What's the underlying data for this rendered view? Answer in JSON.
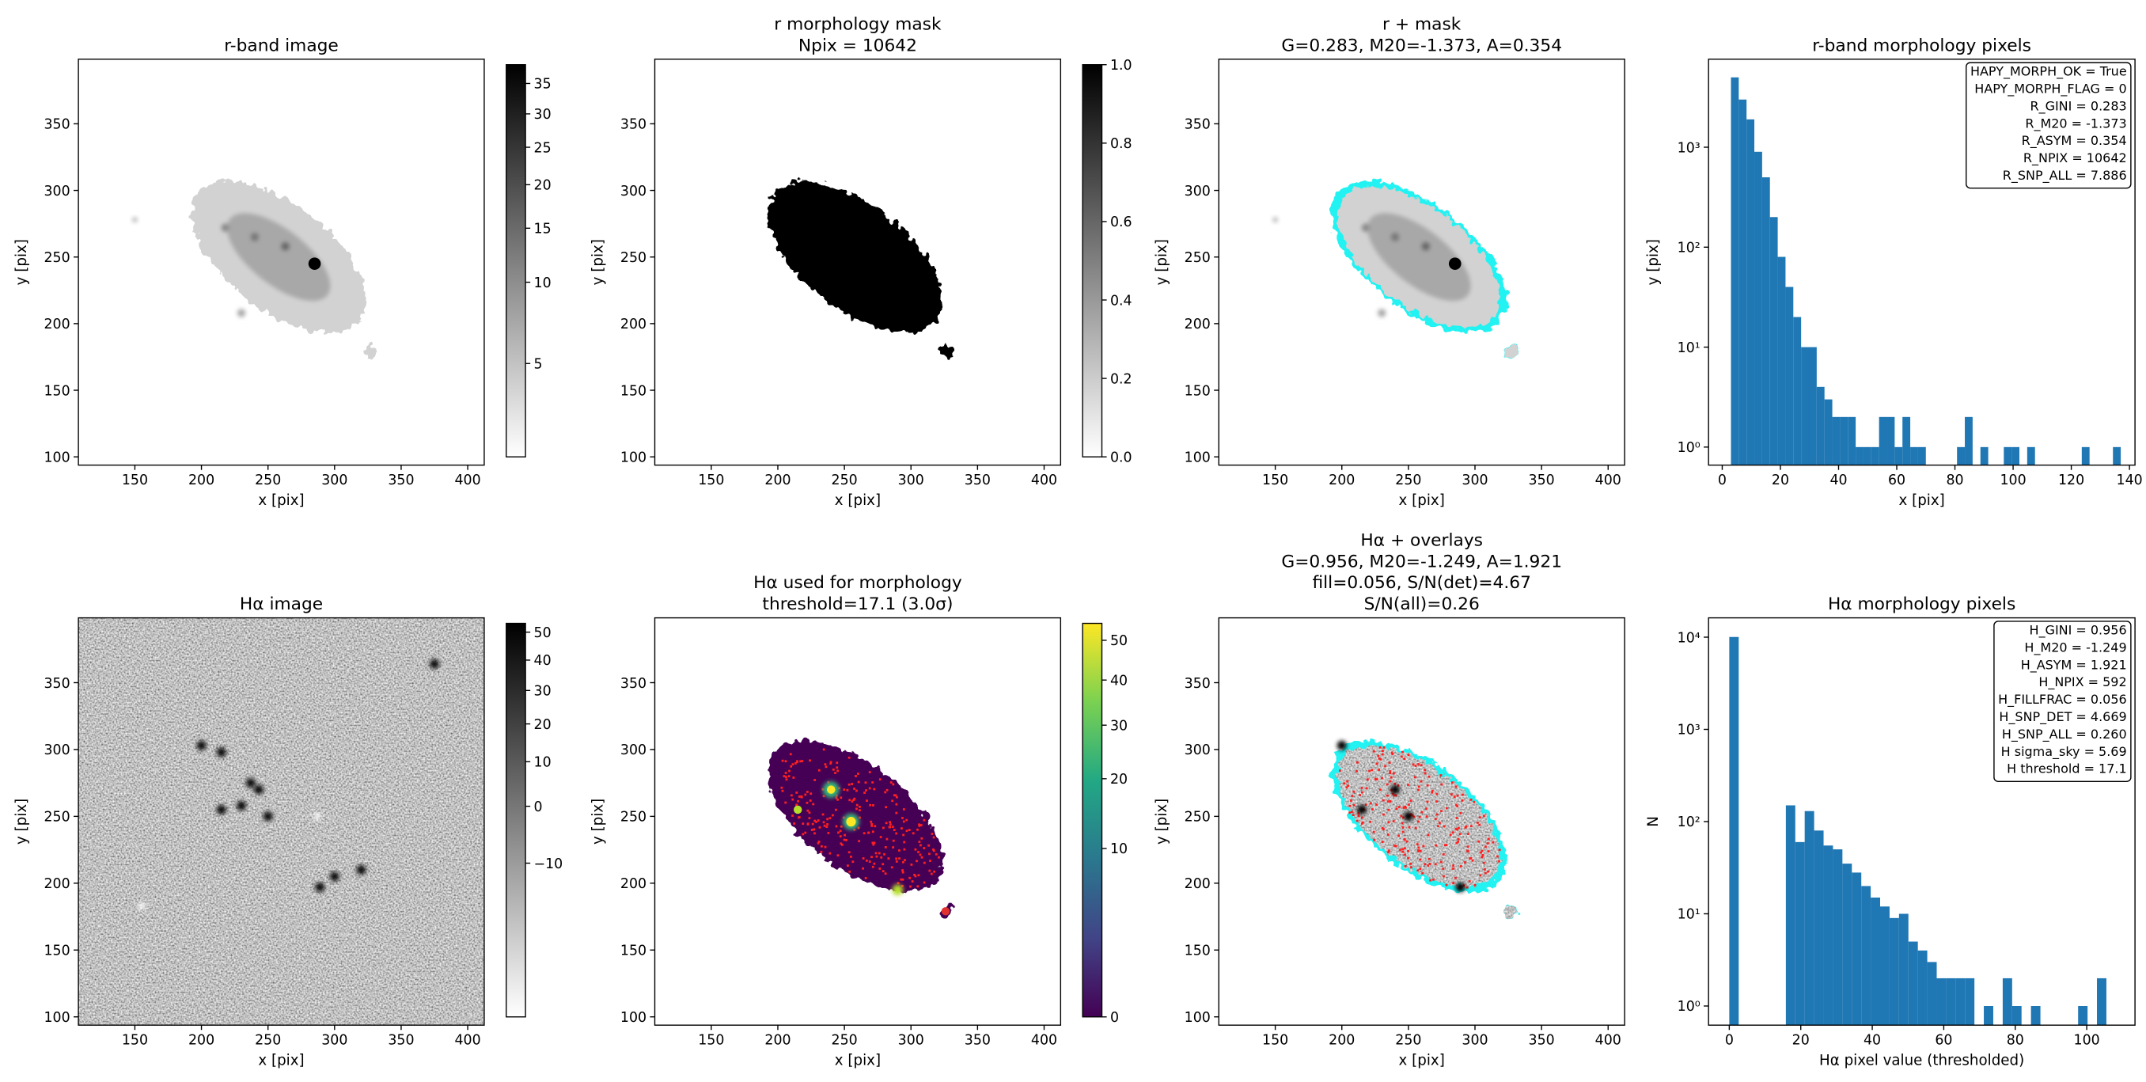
{
  "chart_data": [
    {
      "type": "image",
      "title": [
        "r-band image"
      ],
      "xlabel": "x [pix]",
      "ylabel": "y [pix]",
      "xlim": [
        107.6,
        412.4
      ],
      "ylim": [
        93.8,
        398.5
      ],
      "xticks": [
        150,
        200,
        250,
        300,
        350,
        400
      ],
      "yticks": [
        100,
        150,
        200,
        250,
        300,
        350
      ],
      "colorbar": {
        "cmap": "gray_r",
        "scale": "sqrt",
        "clim": [
          3.0,
          38.3
        ],
        "ticks": [
          5,
          10,
          15,
          20,
          25,
          30,
          35
        ]
      }
    },
    {
      "type": "image",
      "title": [
        "r morphology mask",
        "Npix = 10642"
      ],
      "xlabel": "x [pix]",
      "ylabel": "y [pix]",
      "xlim": [
        107.6,
        412.4
      ],
      "ylim": [
        93.8,
        398.5
      ],
      "xticks": [
        150,
        200,
        250,
        300,
        350,
        400
      ],
      "yticks": [
        100,
        150,
        200,
        250,
        300,
        350
      ],
      "colorbar": {
        "cmap": "gray_r",
        "scale": "linear",
        "clim": [
          0,
          1
        ],
        "ticks": [
          {
            "value": 0,
            "label": "0.0"
          },
          {
            "value": 0.2,
            "label": "0.2"
          },
          {
            "value": 0.4,
            "label": "0.4"
          },
          {
            "value": 0.6,
            "label": "0.6"
          },
          {
            "value": 0.8,
            "label": "0.8"
          },
          {
            "value": 1,
            "label": "1.0"
          }
        ]
      }
    },
    {
      "type": "image",
      "title": [
        "r + mask",
        "G=0.283, M20=-1.373, A=0.354"
      ],
      "xlabel": "x [pix]",
      "ylabel": "y [pix]",
      "xlim": [
        107.6,
        412.4
      ],
      "ylim": [
        93.8,
        398.5
      ],
      "xticks": [
        150,
        200,
        250,
        300,
        350,
        400
      ],
      "yticks": [
        100,
        150,
        200,
        250,
        300,
        350
      ]
    },
    {
      "type": "histogram",
      "title": [
        "r-band morphology pixels"
      ],
      "xlabel": "x [pix]",
      "ylabel": "y [pix]",
      "color": "#1f77b4",
      "log_y": true,
      "bins": [
        3,
        5.68,
        8.36,
        11.04,
        13.72,
        16.4,
        19.08,
        21.76,
        24.44,
        27.12,
        29.8,
        32.48,
        35.16,
        37.84,
        40.52,
        43.2,
        45.88,
        48.56,
        51.24,
        53.92,
        56.6,
        59.28,
        61.96,
        64.64,
        67.32,
        70,
        72.68,
        75.36,
        78.04,
        80.72,
        83.4,
        86.08,
        88.76,
        91.44,
        94.12,
        96.8,
        99.48,
        102.16,
        104.84,
        107.52,
        110.2,
        112.88,
        115.56,
        118.24,
        120.92,
        123.6,
        126.28,
        128.96,
        131.64,
        134.32,
        137
      ],
      "values": [
        5000,
        3000,
        1900,
        900,
        500,
        200,
        80,
        40,
        20,
        10,
        10,
        4,
        3,
        2,
        2,
        2,
        1,
        1,
        1,
        2,
        2,
        1,
        2,
        1,
        1,
        0,
        0,
        0,
        0,
        1,
        2,
        0,
        1,
        0,
        0,
        1,
        1,
        0,
        1,
        0,
        0,
        0,
        0,
        0,
        0,
        1,
        0,
        0,
        0,
        1
      ],
      "xlim": [
        -4.7,
        141.9
      ],
      "ylim": [
        0.66,
        7600
      ],
      "xticks": [
        0,
        20,
        40,
        60,
        80,
        100,
        120,
        140
      ],
      "yticks": [
        {
          "value": 1,
          "label": "10⁰"
        },
        {
          "value": 10,
          "label": "10¹"
        },
        {
          "value": 100,
          "label": "10²"
        },
        {
          "value": 1000,
          "label": "10³"
        }
      ],
      "annotation": [
        "HAPY_MORPH_OK = True",
        "HAPY_MORPH_FLAG = 0",
        "R_GINI = 0.283",
        "R_M20 = -1.373",
        "R_ASYM = 0.354",
        "R_NPIX = 10642",
        "R_SNP_ALL = 7.886"
      ],
      "annotation_corner": "upper right"
    },
    {
      "type": "image",
      "title": [
        "Hα image"
      ],
      "xlabel": "x [pix]",
      "ylabel": "y [pix]",
      "xlim": [
        107.6,
        412.4
      ],
      "ylim": [
        93.8,
        398.5
      ],
      "xticks": [
        150,
        200,
        250,
        300,
        350,
        400
      ],
      "yticks": [
        100,
        150,
        200,
        250,
        300,
        350
      ],
      "colorbar": {
        "cmap": "gray_r",
        "scale": "sqrt",
        "clim": [
          -21.4,
          53.3
        ],
        "ticks": [
          {
            "value": -10,
            "label": "−10"
          },
          0,
          10,
          20,
          30,
          40,
          50
        ]
      }
    },
    {
      "type": "image",
      "title": [
        "Hα used for morphology",
        "threshold=17.1 (3.0σ)"
      ],
      "xlabel": "x [pix]",
      "ylabel": "y [pix]",
      "xlim": [
        107.6,
        412.4
      ],
      "ylim": [
        93.8,
        398.5
      ],
      "xticks": [
        150,
        200,
        250,
        300,
        350,
        400
      ],
      "yticks": [
        100,
        150,
        200,
        250,
        300,
        350
      ],
      "colorbar": {
        "cmap": "viridis",
        "scale": "sqrt",
        "clim": [
          0,
          54.6
        ],
        "ticks": [
          0,
          10,
          20,
          30,
          40,
          50
        ]
      }
    },
    {
      "type": "image",
      "title": [
        "Hα + overlays",
        "G=0.956, M20=-1.249, A=1.921",
        "fill=0.056, S/N(det)=4.67",
        "S/N(all)=0.26"
      ],
      "xlabel": "x [pix]",
      "ylabel": "y [pix]",
      "xlim": [
        107.6,
        412.4
      ],
      "ylim": [
        93.8,
        398.5
      ],
      "xticks": [
        150,
        200,
        250,
        300,
        350,
        400
      ],
      "yticks": [
        100,
        150,
        200,
        250,
        300,
        350
      ]
    },
    {
      "type": "histogram",
      "title": [
        "Hα morphology pixels"
      ],
      "xlabel": "Hα pixel value (thresholded)",
      "ylabel": "N",
      "color": "#1f77b4",
      "log_y": true,
      "bins": [
        0,
        2.64,
        5.28,
        7.91,
        10.55,
        13.19,
        15.83,
        18.46,
        21.1,
        23.74,
        26.38,
        29.01,
        31.65,
        34.29,
        36.93,
        39.56,
        42.2,
        44.84,
        47.48,
        50.11,
        52.75,
        55.39,
        58.03,
        60.66,
        63.3,
        65.94,
        68.58,
        71.21,
        73.85,
        76.49,
        79.13,
        81.76,
        84.4,
        87.04,
        89.68,
        92.31,
        94.95,
        97.59,
        100.23,
        102.86,
        105.5
      ],
      "values": [
        10050,
        0,
        0,
        0,
        0,
        0,
        150,
        60,
        130,
        80,
        55,
        50,
        35,
        28,
        20,
        15,
        12,
        9,
        10,
        5,
        4,
        3,
        2,
        2,
        2,
        2,
        0,
        1,
        0,
        2,
        1,
        0,
        1,
        0,
        0,
        0,
        0,
        1,
        0,
        2
      ],
      "xlim": [
        -5.8,
        113.5
      ],
      "ylim": [
        0.62,
        16200
      ],
      "xticks": [
        0,
        20,
        40,
        60,
        80,
        100
      ],
      "yticks": [
        {
          "value": 1,
          "label": "10⁰"
        },
        {
          "value": 10,
          "label": "10¹"
        },
        {
          "value": 100,
          "label": "10²"
        },
        {
          "value": 1000,
          "label": "10³"
        },
        {
          "value": 10000,
          "label": "10⁴"
        }
      ],
      "annotation": [
        "H_GINI = 0.956",
        "H_M20 = -1.249",
        "H_ASYM = 1.921",
        "H_NPIX = 592",
        "H_FILLFRAC = 0.056",
        "H_SNP_DET = 4.669",
        "H_SNP_ALL = 0.260",
        "H sigma_sky = 5.69",
        "H threshold = 17.1"
      ],
      "annotation_corner": "upper right"
    }
  ]
}
